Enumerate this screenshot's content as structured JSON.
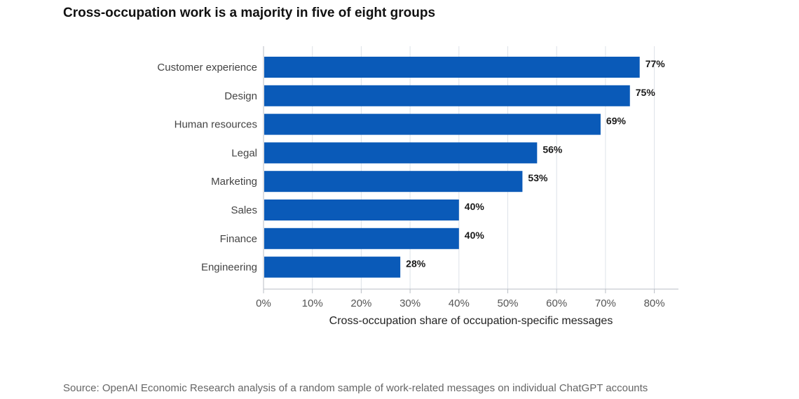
{
  "title": "Cross-occupation work is a majority in five of eight groups",
  "source": "Source: OpenAI Economic Research analysis of a random sample of work-related messages on individual ChatGPT accounts",
  "colors": {
    "bar": "#0a5ab8",
    "grid": "#dde2e8",
    "axis": "#b9bec5"
  },
  "chart_data": {
    "type": "bar",
    "orientation": "horizontal",
    "categories": [
      "Customer experience",
      "Design",
      "Human resources",
      "Legal",
      "Marketing",
      "Sales",
      "Finance",
      "Engineering"
    ],
    "values": [
      77,
      75,
      69,
      56,
      53,
      40,
      40,
      28
    ],
    "value_labels": [
      "77%",
      "75%",
      "69%",
      "56%",
      "53%",
      "40%",
      "40%",
      "28%"
    ],
    "xlabel": "Cross-occupation share of occupation-specific messages",
    "xlim": [
      0,
      85
    ],
    "xticks": [
      0,
      10,
      20,
      30,
      40,
      50,
      60,
      70,
      80
    ],
    "xtick_labels": [
      "0%",
      "10%",
      "20%",
      "30%",
      "40%",
      "50%",
      "60%",
      "70%",
      "80%"
    ],
    "grid": true,
    "legend": "none"
  }
}
